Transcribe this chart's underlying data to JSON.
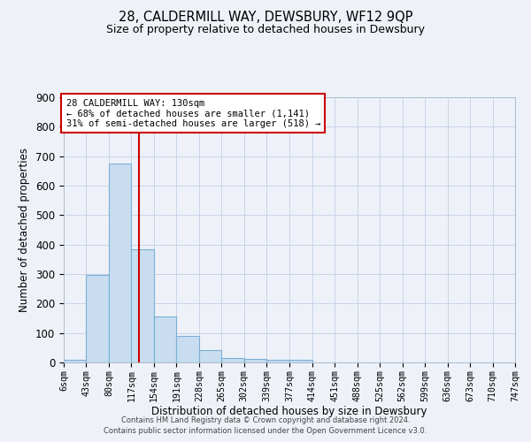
{
  "title_line1": "28, CALDERMILL WAY, DEWSBURY, WF12 9QP",
  "title_line2": "Size of property relative to detached houses in Dewsbury",
  "xlabel": "Distribution of detached houses by size in Dewsbury",
  "ylabel": "Number of detached properties",
  "bar_color": "#c8ddf0",
  "bar_edge_color": "#7aafd4",
  "grid_color": "#c8d4e8",
  "background_color": "#eef2f8",
  "bin_edges": [
    6,
    43,
    80,
    117,
    154,
    191,
    228,
    265,
    302,
    339,
    377,
    414,
    451,
    488,
    525,
    562,
    599,
    636,
    673,
    710,
    747
  ],
  "bin_labels": [
    "6sqm",
    "43sqm",
    "80sqm",
    "117sqm",
    "154sqm",
    "191sqm",
    "228sqm",
    "265sqm",
    "302sqm",
    "339sqm",
    "377sqm",
    "414sqm",
    "451sqm",
    "488sqm",
    "525sqm",
    "562sqm",
    "599sqm",
    "636sqm",
    "673sqm",
    "710sqm",
    "747sqm"
  ],
  "counts": [
    8,
    296,
    675,
    385,
    155,
    90,
    42,
    14,
    13,
    10,
    8,
    0,
    0,
    0,
    0,
    0,
    0,
    0,
    0,
    0
  ],
  "property_size": 130,
  "annotation_title": "28 CALDERMILL WAY: 130sqm",
  "annotation_line2": "← 68% of detached houses are smaller (1,141)",
  "annotation_line3": "31% of semi-detached houses are larger (518) →",
  "annotation_box_color": "#ffffff",
  "annotation_box_edge": "#cc0000",
  "vline_color": "#cc0000",
  "footer_line1": "Contains HM Land Registry data © Crown copyright and database right 2024.",
  "footer_line2": "Contains public sector information licensed under the Open Government Licence v3.0.",
  "ylim": [
    0,
    900
  ],
  "yticks": [
    0,
    100,
    200,
    300,
    400,
    500,
    600,
    700,
    800,
    900
  ]
}
